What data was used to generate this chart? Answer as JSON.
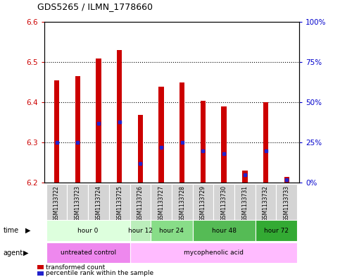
{
  "title": "GDS5265 / ILMN_1778660",
  "samples": [
    "GSM1133722",
    "GSM1133723",
    "GSM1133724",
    "GSM1133725",
    "GSM1133726",
    "GSM1133727",
    "GSM1133728",
    "GSM1133729",
    "GSM1133730",
    "GSM1133731",
    "GSM1133732",
    "GSM1133733"
  ],
  "transformed_count": [
    6.455,
    6.465,
    6.51,
    6.53,
    6.37,
    6.44,
    6.45,
    6.405,
    6.39,
    6.23,
    6.4,
    6.215
  ],
  "percentile_rank": [
    25,
    25,
    37,
    38,
    12,
    22,
    25,
    20,
    18,
    5,
    20,
    2
  ],
  "ylim_left": [
    6.2,
    6.6
  ],
  "ylim_right": [
    0,
    100
  ],
  "bar_color": "#cc0000",
  "percentile_color": "#2222cc",
  "bar_bottom": 6.2,
  "bar_width": 0.25,
  "time_groups": [
    {
      "label": "hour 0",
      "start": 0,
      "end": 3,
      "color": "#ddffdd"
    },
    {
      "label": "hour 12",
      "start": 4,
      "end": 4,
      "color": "#bbeecc"
    },
    {
      "label": "hour 24",
      "start": 5,
      "end": 6,
      "color": "#88dd88"
    },
    {
      "label": "hour 48",
      "start": 7,
      "end": 9,
      "color": "#55bb55"
    },
    {
      "label": "hour 72",
      "start": 10,
      "end": 11,
      "color": "#33aa33"
    }
  ],
  "agent_groups": [
    {
      "label": "untreated control",
      "start": 0,
      "end": 3,
      "color": "#ee88ee"
    },
    {
      "label": "mycophenolic acid",
      "start": 4,
      "end": 11,
      "color": "#ffbbff"
    }
  ],
  "tick_color_left": "#cc0000",
  "tick_color_right": "#0000cc",
  "legend_items": [
    {
      "color": "#cc0000",
      "label": "transformed count"
    },
    {
      "color": "#2222cc",
      "label": "percentile rank within the sample"
    }
  ]
}
